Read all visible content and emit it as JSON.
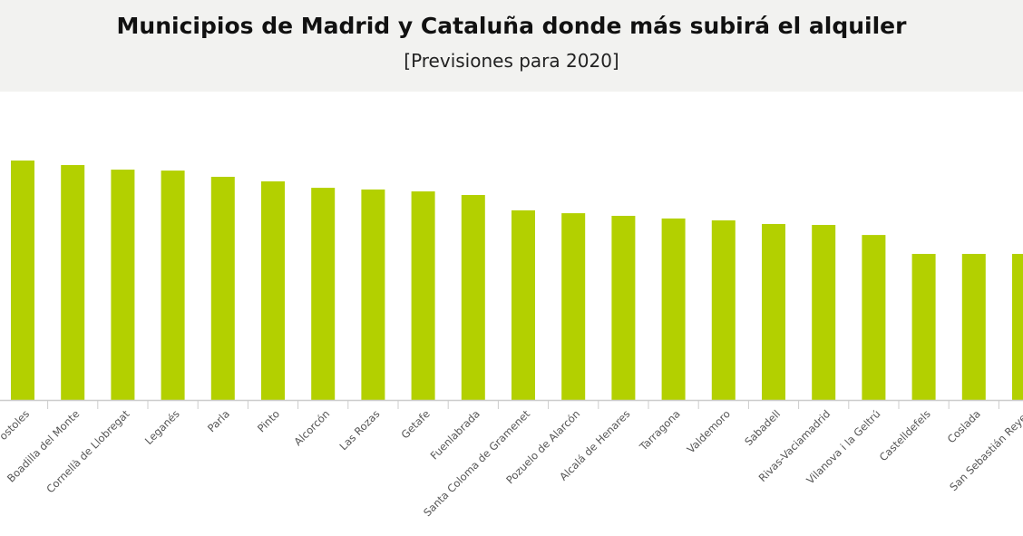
{
  "header": {
    "title": "Municipios de Madrid y Cataluña donde más subirá el alquiler",
    "subtitle": "[Previsiones para 2020]"
  },
  "chart_data": {
    "type": "bar",
    "title": "Municipios de Madrid y Cataluña donde más subirá el alquiler",
    "subtitle": "[Previsiones para 2020]",
    "xlabel": "",
    "ylabel": "",
    "note": "No y-axis printed; values are relative bar heights (first bar = 100)",
    "categories": [
      "Móstoles",
      "Boadilla del Monte",
      "Cornellà de Llobregat",
      "Leganés",
      "Parla",
      "Pinto",
      "Alcorcón",
      "Las Rozas",
      "Getafe",
      "Fuenlabrada",
      "Santa Coloma de Gramenet",
      "Pozuelo de Alarcón",
      "Alcalá de Henares",
      "Tarragona",
      "Valdemoro",
      "Sabadell",
      "Rivas-Vaciamadrid",
      "Vilanova i la Geltrú",
      "Castelldefels",
      "Coslada",
      "San Sebastián de los Reyes"
    ],
    "category_labels_visible": [
      "ostoles",
      "Boadilla del Monte",
      "Cornellà de Llobregat",
      "Leganés",
      "Parla",
      "Pinto",
      "Alcorcón",
      "Las Rozas",
      "Getafe",
      "Fuenlabrada",
      "Santa Coloma de Gramenet",
      "Pozuelo de Alarcón",
      "Alcalá de Henares",
      "Tarragona",
      "Valdemoro",
      "Sabadell",
      "Rivas-Vaciamadrid",
      "Vilanova i la Geltrú",
      "Castelldefels",
      "Coslada",
      "San Sebastián Reyes"
    ],
    "values": [
      100,
      98.1,
      96.2,
      95.8,
      93.2,
      91.3,
      88.6,
      87.9,
      87.1,
      85.6,
      79.2,
      78.0,
      76.9,
      75.8,
      75.0,
      73.5,
      73.1,
      68.9,
      61.0,
      61.0,
      61.0
    ],
    "ylim": [
      0,
      125
    ],
    "grid": false,
    "colors": {
      "bar": "#b3d000",
      "axis": "#cccccc",
      "label": "#555555"
    }
  }
}
